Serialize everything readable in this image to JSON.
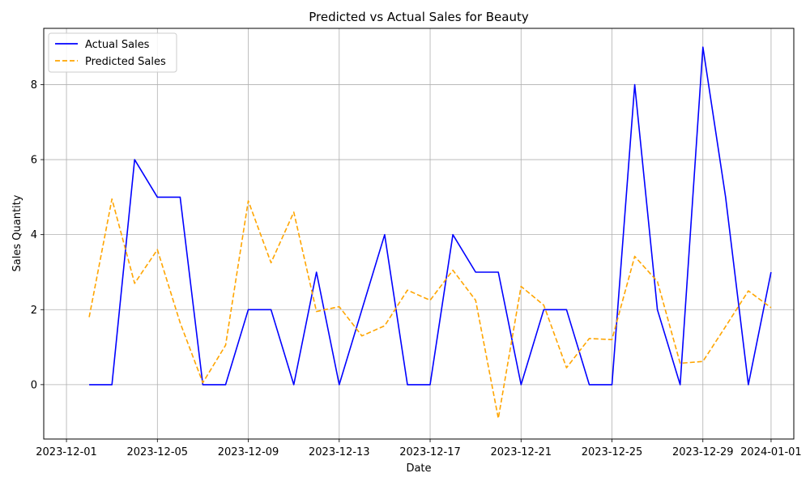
{
  "chart_data": {
    "type": "line",
    "title": "Predicted vs Actual Sales for Beauty",
    "xlabel": "Date",
    "ylabel": "Sales Quantity",
    "xlim": [
      "2023-11-30",
      "2024-01-02"
    ],
    "ylim": [
      -1.45,
      9.5
    ],
    "x_ticks": [
      "2023-12-01",
      "2023-12-05",
      "2023-12-09",
      "2023-12-13",
      "2023-12-17",
      "2023-12-21",
      "2023-12-25",
      "2023-12-29",
      "2024-01-01"
    ],
    "y_ticks": [
      0,
      2,
      4,
      6,
      8
    ],
    "grid": true,
    "legend_position": "upper-left",
    "x": [
      "2023-12-02",
      "2023-12-03",
      "2023-12-04",
      "2023-12-05",
      "2023-12-06",
      "2023-12-07",
      "2023-12-08",
      "2023-12-09",
      "2023-12-10",
      "2023-12-11",
      "2023-12-12",
      "2023-12-13",
      "2023-12-14",
      "2023-12-15",
      "2023-12-16",
      "2023-12-17",
      "2023-12-18",
      "2023-12-19",
      "2023-12-20",
      "2023-12-21",
      "2023-12-22",
      "2023-12-23",
      "2023-12-24",
      "2023-12-25",
      "2023-12-26",
      "2023-12-27",
      "2023-12-28",
      "2023-12-29",
      "2023-12-30",
      "2023-12-31",
      "2024-01-01"
    ],
    "series": [
      {
        "name": "Actual Sales",
        "color": "#0000ff",
        "style": "solid",
        "values": [
          0,
          0,
          6,
          5,
          5,
          0,
          0,
          2,
          2,
          0,
          3,
          0,
          2,
          4,
          0,
          0,
          4,
          3,
          3,
          0,
          2,
          2,
          0,
          0,
          8,
          2,
          0,
          9,
          5,
          0,
          3
        ]
      },
      {
        "name": "Predicted Sales",
        "color": "#ffa500",
        "style": "dashed",
        "values": [
          1.8,
          4.95,
          2.7,
          3.6,
          1.65,
          0.05,
          1.05,
          4.9,
          3.25,
          4.6,
          1.95,
          2.08,
          1.3,
          1.57,
          2.52,
          2.25,
          3.05,
          2.25,
          -0.9,
          2.62,
          2.12,
          0.45,
          1.23,
          1.2,
          3.42,
          2.75,
          0.57,
          0.62,
          1.55,
          2.5,
          2.05
        ]
      }
    ]
  }
}
